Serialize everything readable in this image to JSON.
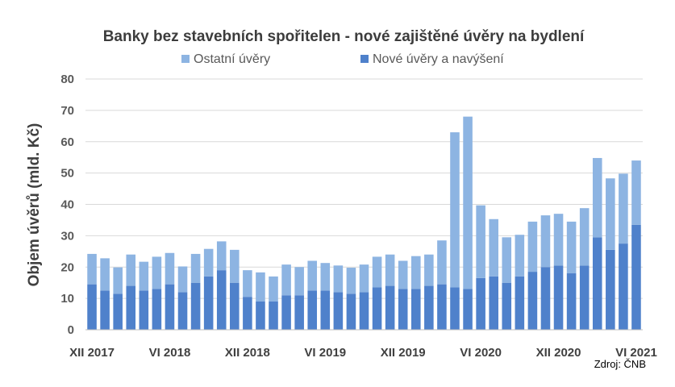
{
  "chart_data": {
    "type": "bar",
    "stacked": true,
    "title": "Banky bez stavebních spořitelen - nové zajištěné úvěry na bydlení",
    "ylabel": "Objem úvěrů (mld. Kč)",
    "xlabel": "",
    "source": "Zdroj: ČNB",
    "ylim": [
      0,
      80
    ],
    "yticks": [
      0,
      10,
      20,
      30,
      40,
      50,
      60,
      70,
      80
    ],
    "grid": true,
    "legend_position": "top-center",
    "xtick_labels": [
      {
        "index": 0,
        "label": "XII 2017"
      },
      {
        "index": 6,
        "label": "VI 2018"
      },
      {
        "index": 12,
        "label": "XII 2018"
      },
      {
        "index": 18,
        "label": "VI 2019"
      },
      {
        "index": 24,
        "label": "XII 2019"
      },
      {
        "index": 30,
        "label": "VI 2020"
      },
      {
        "index": 36,
        "label": "XII 2020"
      },
      {
        "index": 42,
        "label": "VI 2021"
      }
    ],
    "legend": [
      {
        "name": "Ostatní úvěry",
        "color": "#8DB4E2"
      },
      {
        "name": "Nové úvěry a navýšení",
        "color": "#4F81CB"
      }
    ],
    "series": [
      {
        "name": "Nové úvěry a navýšení",
        "color": "#4F81CB",
        "values": [
          14.5,
          12.5,
          11.5,
          14,
          12.5,
          13,
          14.5,
          12,
          15,
          17,
          19,
          15,
          10.5,
          9,
          9,
          11,
          11,
          12.5,
          12.5,
          12,
          11.5,
          12,
          13.5,
          14,
          13,
          13,
          14,
          14.5,
          13.5,
          13,
          16.5,
          17,
          15,
          17,
          18.5,
          20,
          20.5,
          18,
          20.5,
          29.5,
          25.5,
          27.5,
          33.5
        ]
      },
      {
        "name": "Ostatní úvěry",
        "color": "#8DB4E2",
        "values": [
          9.7,
          10.3,
          8.4,
          10,
          9.2,
          10.3,
          10,
          8.2,
          9.2,
          8.8,
          9.2,
          10.5,
          8.5,
          9.3,
          8,
          9.8,
          9,
          9.5,
          8.8,
          8.5,
          8.3,
          8.8,
          9.8,
          10,
          9,
          10.5,
          10,
          14,
          49.5,
          55,
          23.2,
          18.3,
          14.5,
          13.3,
          16,
          16.5,
          16.5,
          16.5,
          18.3,
          25.3,
          22.8,
          22.3,
          20.5
        ]
      }
    ]
  }
}
